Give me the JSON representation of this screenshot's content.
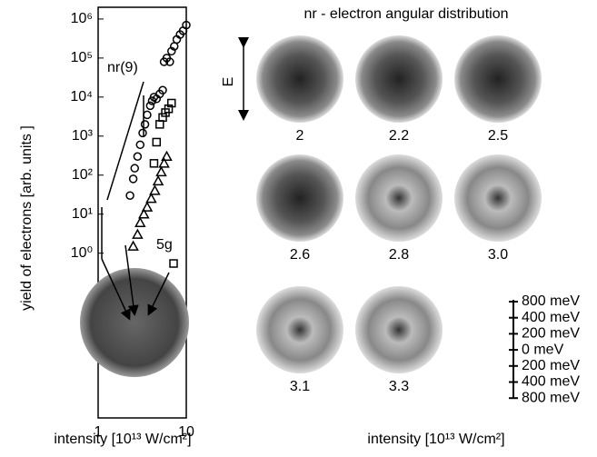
{
  "chart_data": [
    {
      "type": "scatter",
      "ylabel": "yield of electrons [arb. units ]",
      "xlabel": "intensity [10¹³ W/cm²]",
      "log_x": true,
      "log_y": true,
      "xlim": [
        1,
        10
      ],
      "xticks": [
        1,
        10
      ],
      "ylim": [
        6e-05,
        2000000
      ],
      "yticks": [
        {
          "value": 1,
          "label": "10⁰"
        },
        {
          "value": 10,
          "label": "10¹"
        },
        {
          "value": 100,
          "label": "10²"
        },
        {
          "value": 1000,
          "label": "10³"
        },
        {
          "value": 10000,
          "label": "10⁴"
        },
        {
          "value": 100000,
          "label": "10⁵"
        },
        {
          "value": 1000000,
          "label": "10⁶"
        }
      ],
      "annotations": [
        "nr(9)",
        "5g"
      ],
      "series": [
        {
          "marker": "circle",
          "color": "#000000",
          "x": [
            2.3,
            2.5,
            2.6,
            2.8,
            3.0,
            3.2,
            3.4,
            3.6,
            3.9,
            4.1,
            4.3,
            4.6,
            5.0,
            5.4,
            5.6,
            6.0,
            6.5,
            6.8,
            7.3,
            7.8,
            8.5,
            9.2,
            10
          ],
          "values": [
            30,
            80,
            150,
            300,
            600,
            1200,
            2000,
            3500,
            6000,
            8000,
            10000,
            9000,
            12000,
            15000,
            80000,
            100000,
            80000,
            150000,
            200000,
            300000,
            400000,
            500000,
            700000
          ]
        },
        {
          "marker": "square",
          "color": "#000000",
          "x": [
            4.3,
            4.6,
            5.0,
            5.4,
            5.8,
            6.3,
            6.8
          ],
          "values": [
            200,
            700,
            2000,
            3000,
            4000,
            5000,
            7000
          ]
        },
        {
          "marker": "triangle",
          "color": "#000000",
          "x": [
            2.5,
            2.8,
            3.0,
            3.3,
            3.6,
            4.0,
            4.4,
            4.8,
            5.2,
            5.6,
            6.0
          ],
          "values": [
            1.5,
            3,
            6,
            10,
            15,
            25,
            40,
            70,
            120,
            200,
            300
          ]
        }
      ]
    },
    {
      "type": "image-grid",
      "title": "nr - electron angular distribution",
      "xlabel": "intensity [10¹³ W/cm²]",
      "categories": [
        "2",
        "2.2",
        "2.5",
        "2.6",
        "2.8",
        "3.0",
        "3.1",
        "3.3"
      ],
      "polarization_label": "E",
      "scale_labels": [
        "800 meV",
        "400 meV",
        "200 meV",
        "0 meV",
        "200 meV",
        "400 meV",
        "800 meV"
      ]
    }
  ]
}
